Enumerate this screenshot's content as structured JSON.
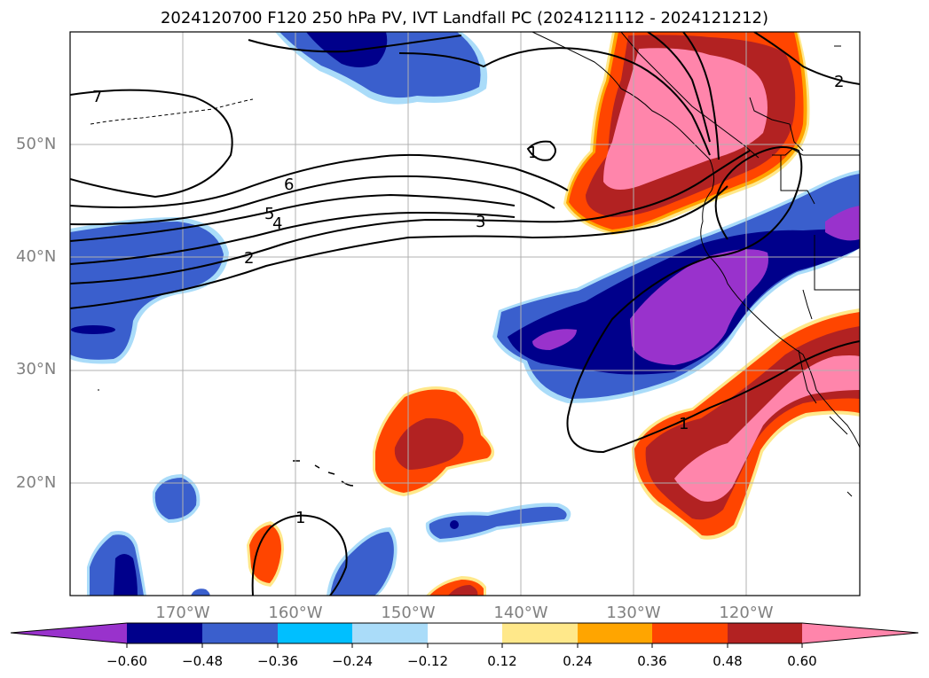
{
  "title": "2024120700 F120 250 hPa PV, IVT Landfall PC (2024121112 - 2024121212)",
  "lat_labels": [
    "50°N",
    "40°N",
    "30°N",
    "20°N"
  ],
  "lon_labels": [
    "170°W",
    "160°W",
    "150°W",
    "140°W",
    "130°W",
    "120°W"
  ],
  "contour_labels": [
    "7",
    "6",
    "5",
    "4",
    "3",
    "2",
    "1",
    "2",
    "1",
    "1"
  ],
  "colorbar": {
    "tick_labels": [
      "−0.60",
      "−0.48",
      "−0.36",
      "−0.24",
      "−0.12",
      "0.12",
      "0.24",
      "0.36",
      "0.48",
      "0.60"
    ],
    "colors": [
      "#9932cc",
      "#00008b",
      "#3a5fcd",
      "#00bfff",
      "#aadcf9",
      "#ffffff",
      "#ffe88a",
      "#ffa500",
      "#ff4500",
      "#b22222",
      "#ff85ab"
    ]
  },
  "colors": {
    "pink": "#ff85ab",
    "firebrick": "#b22222",
    "orangered": "#ff4500",
    "orange": "#ffa500",
    "yellow": "#ffe88a",
    "purple": "#9932cc",
    "navy": "#00008b",
    "royal": "#3a5fcd",
    "sky": "#00bfff",
    "lightsky": "#aadcf9"
  }
}
